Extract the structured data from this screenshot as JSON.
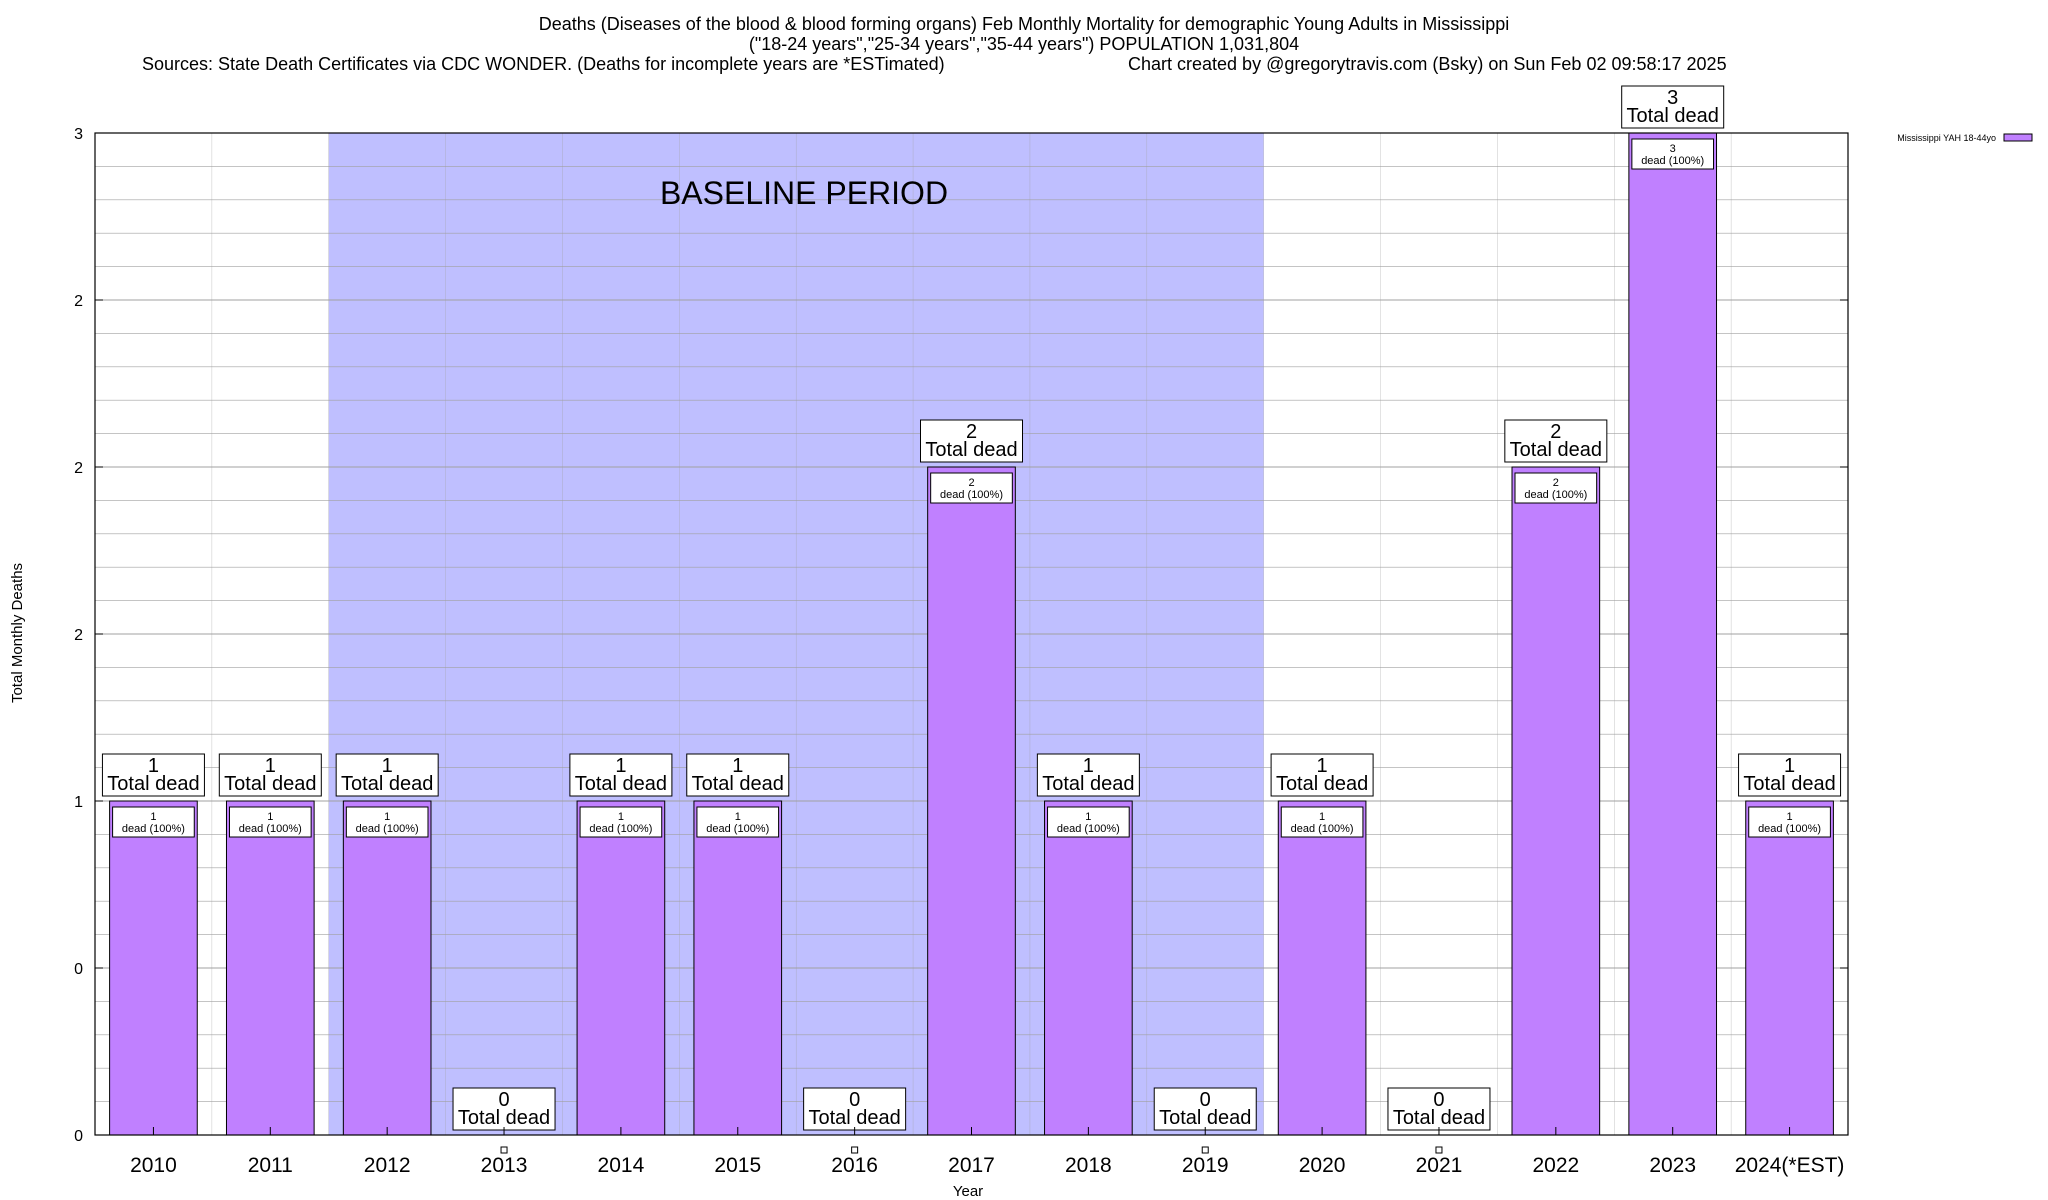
{
  "chart_data": {
    "type": "bar",
    "title": "Deaths (Diseases of the blood & blood forming organs) Feb Monthly Mortality for demographic Young Adults in Mississippi",
    "subtitle": "(\"18-24 years\",\"25-34 years\",\"35-44 years\") POPULATION 1,031,804",
    "sources": "Sources: State Death Certificates via CDC WONDER. (Deaths for incomplete years are *ESTimated)",
    "credit": "Chart created by @gregorytravis.com (Bsky) on Sun Feb 02 09:58:17 2025",
    "xlabel": "Year",
    "ylabel": "Total Monthly Deaths",
    "categories": [
      "2010",
      "2011",
      "2012",
      "2013",
      "2014",
      "2015",
      "2016",
      "2017",
      "2018",
      "2019",
      "2020",
      "2021",
      "2022",
      "2023",
      "2024(*EST)"
    ],
    "series": [
      {
        "name": "Mississippi YAH 18-44yo",
        "values": [
          1,
          1,
          1,
          0,
          1,
          1,
          0,
          2,
          1,
          0,
          1,
          0,
          2,
          3,
          1
        ]
      }
    ],
    "value_labels": [
      "1",
      "1",
      "1",
      "0",
      "1",
      "1",
      "0",
      "2",
      "1",
      "0",
      "1",
      "0",
      "2",
      "3",
      "1"
    ],
    "total_caption": "Total dead",
    "inner_caption": "dead (100%)",
    "ylim": [
      0,
      3
    ],
    "ytick_values": [
      0,
      0.5,
      1,
      1.5,
      2,
      2.5,
      3
    ],
    "ytick_labels": [
      "0",
      "0",
      "1",
      "2",
      "2",
      "2",
      "3"
    ],
    "baseline_annotation": "BASELINE PERIOD",
    "baseline_range": [
      "2012",
      "2019"
    ],
    "legend_position": "top-right",
    "grid": true,
    "colors": {
      "bar_fill": "#c080ff",
      "bar_stroke": "#000000",
      "baseline_shade": "#bfbfff",
      "grid": "#a0a0a0"
    }
  }
}
